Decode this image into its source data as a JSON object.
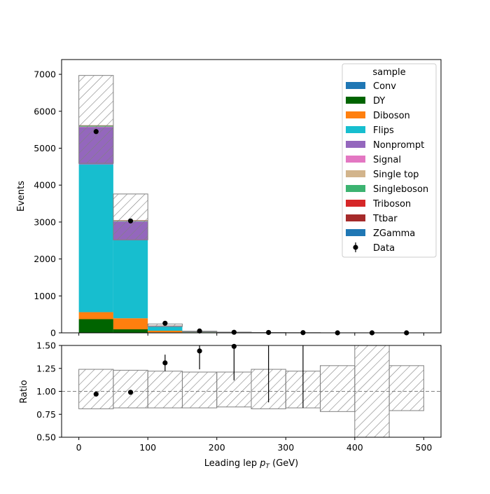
{
  "chart_data": {
    "type": "bar",
    "stacked": true,
    "x_edges": [
      0,
      50,
      100,
      150,
      200,
      250,
      300,
      350,
      400,
      450,
      500
    ],
    "xlabel": "Leading lep",
    "xlabel_math": "p",
    "xlabel_sub": "T",
    "xlabel_unit": "(GeV)",
    "xlim": [
      -25,
      525
    ],
    "xticks": [
      "0",
      "100",
      "200",
      "300",
      "400",
      "500"
    ],
    "main": {
      "ylabel": "Events",
      "ylim": [
        0,
        7400
      ],
      "yticks": [
        "0",
        "1000",
        "2000",
        "3000",
        "4000",
        "5000",
        "6000",
        "7000"
      ]
    },
    "ratio": {
      "ylabel": "Ratio",
      "ylim": [
        0.5,
        1.5
      ],
      "yticks": [
        "0.50",
        "0.75",
        "1.00",
        "1.25",
        "1.50"
      ],
      "reference_line": 1.0,
      "points": [
        0.97,
        0.99,
        1.31,
        1.44,
        1.49,
        null,
        null,
        null,
        null,
        null
      ],
      "errors_low": [
        0.0,
        0.0,
        0.09,
        0.2,
        0.37,
        0.62,
        0.68,
        0,
        0,
        0
      ],
      "errors_high": [
        0.0,
        0.0,
        0.09,
        0.2,
        0.37,
        0.62,
        0.68,
        0,
        0,
        0
      ],
      "err_bar_points": [
        null,
        null,
        null,
        null,
        null,
        1.5,
        1.5,
        null,
        null,
        null
      ],
      "unc_low": [
        0.81,
        0.82,
        0.82,
        0.82,
        0.83,
        0.81,
        0.82,
        0.78,
        0.5,
        0.79
      ],
      "unc_high": [
        1.24,
        1.23,
        1.22,
        1.21,
        1.21,
        1.24,
        1.22,
        1.28,
        1.5,
        1.28
      ]
    },
    "legend": {
      "title": "sample",
      "position": "top-right"
    },
    "series": [
      {
        "name": "Conv",
        "color": "#1f77b4",
        "values": [
          0,
          0,
          0,
          0,
          0,
          0,
          0,
          0,
          0,
          0
        ]
      },
      {
        "name": "DY",
        "color": "#006400",
        "values": [
          370,
          95,
          12,
          3,
          1,
          0,
          0,
          0,
          0,
          0
        ]
      },
      {
        "name": "Diboson",
        "color": "#ff7f0e",
        "values": [
          190,
          300,
          45,
          12,
          5,
          3,
          2,
          1,
          1,
          1
        ]
      },
      {
        "name": "Flips",
        "color": "#17becf",
        "values": [
          4000,
          2110,
          110,
          8,
          3,
          1,
          1,
          0,
          0,
          0
        ]
      },
      {
        "name": "Nonprompt",
        "color": "#9467bd",
        "values": [
          1010,
          510,
          20,
          4,
          2,
          1,
          0,
          0,
          0,
          0
        ]
      },
      {
        "name": "Signal",
        "color": "#e377c2",
        "values": [
          10,
          5,
          1,
          0,
          0,
          0,
          0,
          0,
          0,
          0
        ]
      },
      {
        "name": "Single top",
        "color": "#d2b48c",
        "values": [
          5,
          5,
          2,
          1,
          0,
          0,
          0,
          0,
          0,
          0
        ]
      },
      {
        "name": "Singleboson",
        "color": "#3cb371",
        "values": [
          25,
          15,
          5,
          5,
          3,
          1,
          1,
          0,
          0,
          0
        ]
      },
      {
        "name": "Triboson",
        "color": "#d62728",
        "values": [
          5,
          5,
          2,
          1,
          1,
          0,
          0,
          0,
          0,
          0
        ]
      },
      {
        "name": "Ttbar",
        "color": "#a52a2a",
        "values": [
          5,
          5,
          3,
          2,
          1,
          1,
          0,
          0,
          0,
          0
        ]
      },
      {
        "name": "ZGamma",
        "color": "#1f77b4",
        "values": [
          0,
          0,
          0,
          0,
          0,
          0,
          0,
          0,
          0,
          0
        ]
      }
    ],
    "uncertainty_band": {
      "low": [
        4590,
        2520,
        170,
        30,
        14,
        7,
        4,
        1,
        0,
        1
      ],
      "high": [
        6970,
        3760,
        240,
        45,
        20,
        10,
        6,
        2,
        2,
        1
      ]
    },
    "data": {
      "name": "Data",
      "values": [
        5450,
        3030,
        260,
        50,
        15,
        10,
        5,
        0,
        0,
        0
      ]
    }
  }
}
